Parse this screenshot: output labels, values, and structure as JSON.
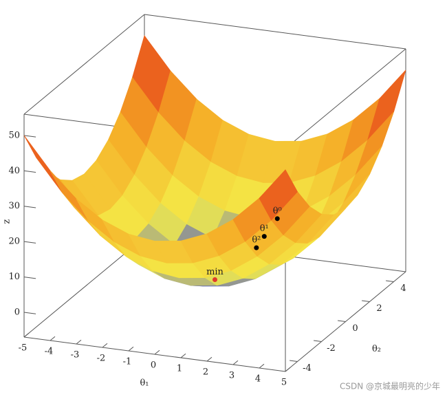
{
  "chart_data": {
    "type": "surface3d",
    "x_label": "θ₁",
    "y_label": "θ₂",
    "z_label": "z",
    "xlim": [
      -5,
      5
    ],
    "ylim": [
      -5,
      5
    ],
    "zlim": [
      -7,
      56
    ],
    "xticks": [
      -5,
      -4,
      -3,
      -2,
      -1,
      0,
      1,
      2,
      3,
      4,
      5
    ],
    "yticks": [
      -4,
      -2,
      0,
      2,
      4
    ],
    "zticks": [
      0,
      10,
      20,
      30,
      40,
      50
    ],
    "colorscale": [
      [
        0,
        "#3340d8"
      ],
      [
        10,
        "#f4ee4a"
      ],
      [
        30,
        "#f5a623"
      ],
      [
        50,
        "#e32a1a"
      ]
    ],
    "surface": {
      "x": [
        -5,
        -4,
        -3,
        -2,
        -1,
        0,
        1,
        2,
        3,
        4,
        5
      ],
      "y": [
        -5,
        -4,
        -3,
        -2,
        -1,
        0,
        1,
        2,
        3,
        4,
        5
      ],
      "z": [
        [
          50,
          41,
          34,
          29,
          26,
          25,
          26,
          29,
          34,
          41,
          50
        ],
        [
          41,
          32,
          25,
          20,
          17,
          16,
          17,
          20,
          25,
          32,
          41
        ],
        [
          34,
          25,
          18,
          13,
          10,
          9,
          10,
          13,
          18,
          25,
          34
        ],
        [
          29,
          20,
          13,
          8,
          5,
          4,
          5,
          8,
          13,
          20,
          29
        ],
        [
          26,
          17,
          10,
          5,
          2,
          1,
          2,
          5,
          10,
          17,
          26
        ],
        [
          25,
          16,
          9,
          4,
          1,
          0,
          1,
          4,
          9,
          16,
          25
        ],
        [
          26,
          17,
          10,
          5,
          2,
          1,
          2,
          5,
          10,
          17,
          26
        ],
        [
          29,
          20,
          13,
          8,
          5,
          4,
          5,
          8,
          13,
          20,
          29
        ],
        [
          34,
          25,
          18,
          13,
          10,
          9,
          10,
          13,
          18,
          25,
          34
        ],
        [
          41,
          32,
          25,
          20,
          17,
          16,
          17,
          20,
          25,
          32,
          41
        ],
        [
          50,
          41,
          34,
          29,
          26,
          25,
          26,
          29,
          34,
          41,
          50
        ]
      ]
    },
    "points": [
      {
        "label": "θ⁰",
        "x": 4,
        "y": -3.5,
        "z": 31,
        "color": "#000000"
      },
      {
        "label": "θ¹",
        "x": 3.5,
        "y": -3.5,
        "z": 25.5,
        "color": "#000000"
      },
      {
        "label": "θ²",
        "x": 3.2,
        "y": -3.5,
        "z": 22,
        "color": "#000000"
      },
      {
        "label": "min",
        "x": 0,
        "y": 0,
        "z": 0,
        "color": "#e0392b"
      }
    ]
  },
  "watermark": "CSDN @京城最明亮的少年"
}
